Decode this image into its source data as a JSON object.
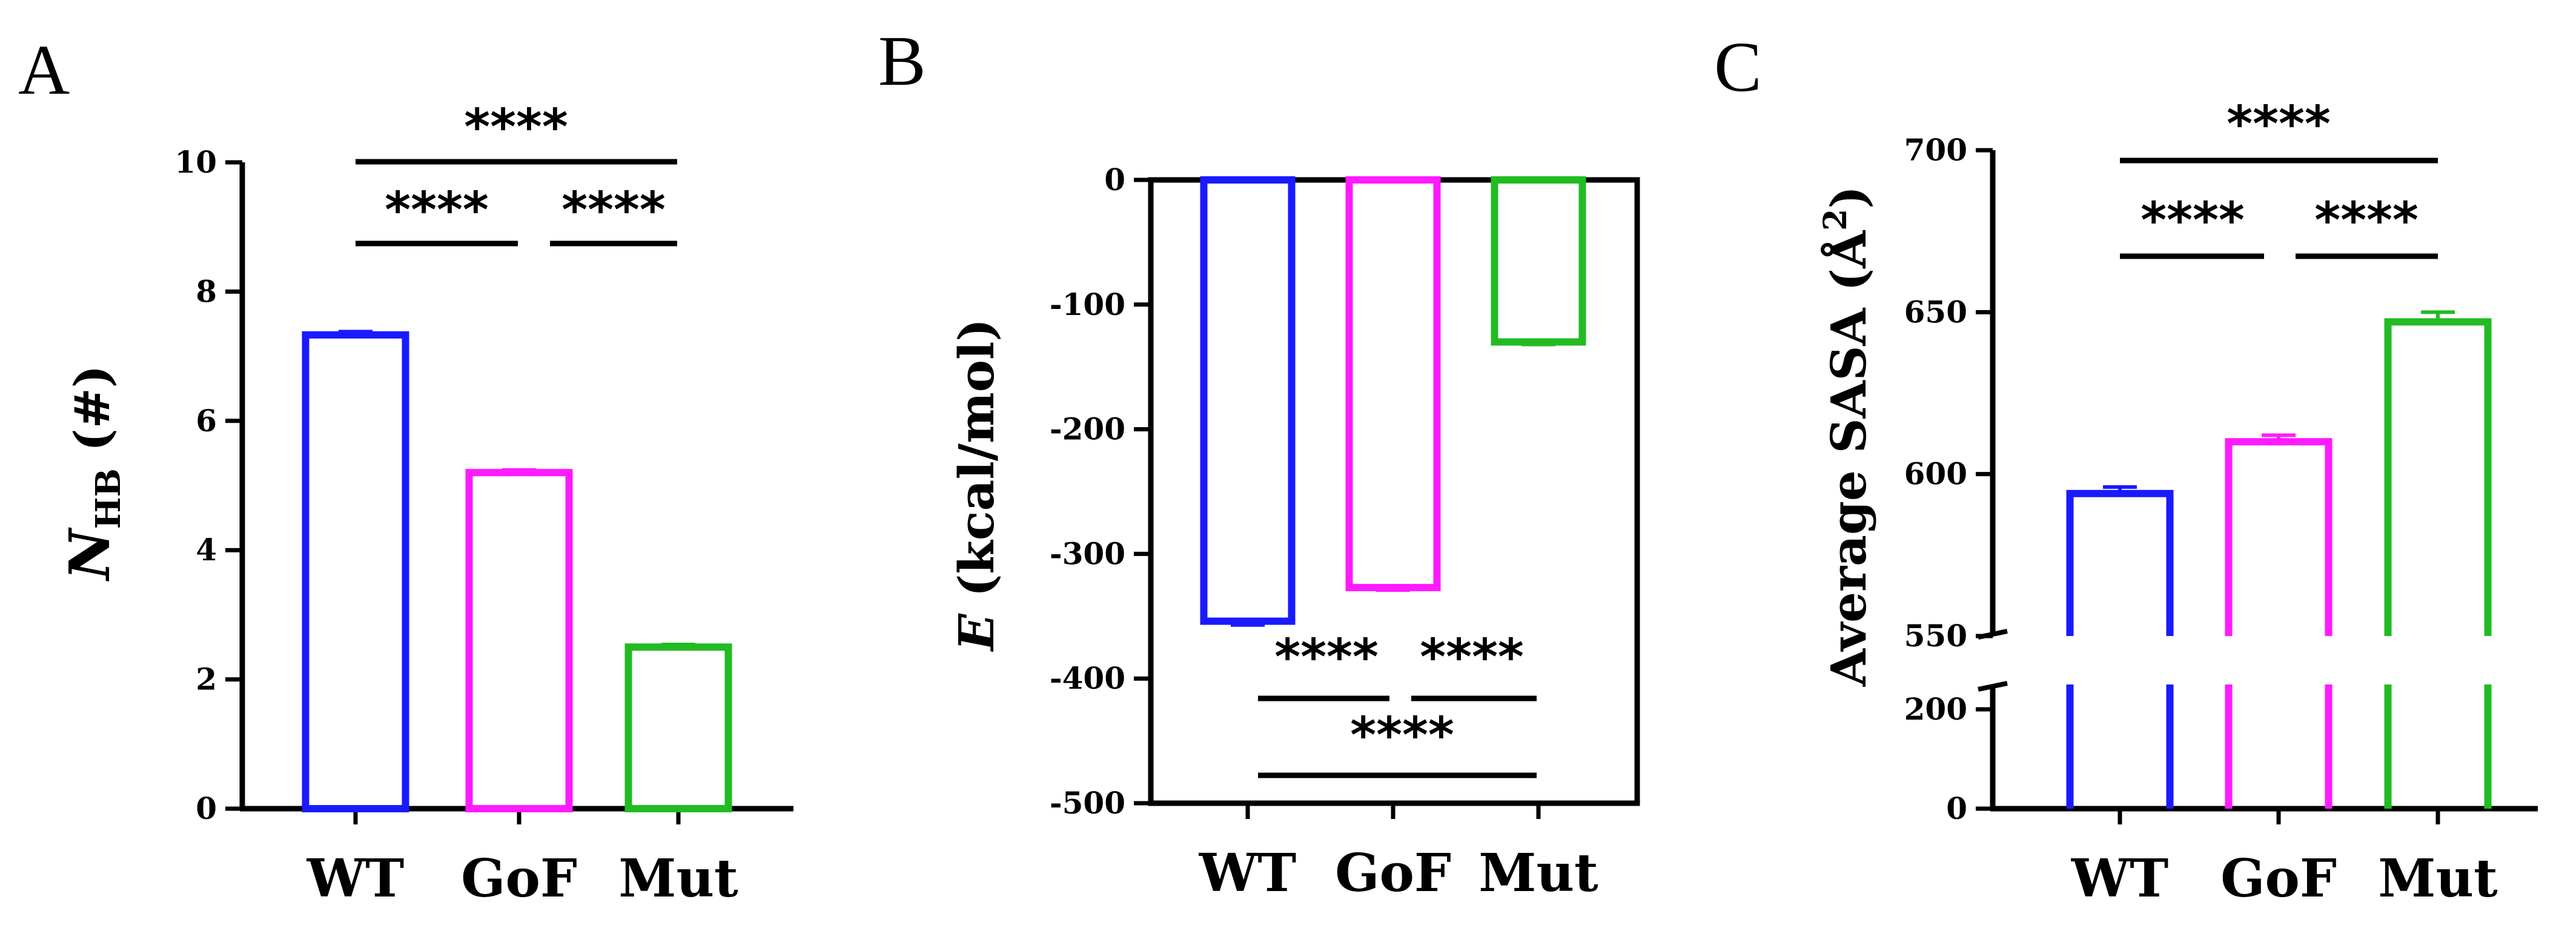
{
  "chart_data": [
    {
      "panel": "A",
      "type": "bar",
      "categories": [
        "WT",
        "GoF",
        "Mut"
      ],
      "colors": [
        "#1a1aff",
        "#ff1aff",
        "#22bb22"
      ],
      "values": [
        7.33,
        5.2,
        2.5
      ],
      "errors": [
        0.05,
        0.04,
        0.04
      ],
      "ylim": [
        0,
        10
      ],
      "yticks": [
        "0",
        "2",
        "4",
        "6",
        "8",
        "10"
      ],
      "ylabel": {
        "symbol": "N",
        "subscript": "HB",
        "rest": " (#)"
      },
      "significance": [
        {
          "from": 0,
          "to": 1,
          "label": "****"
        },
        {
          "from": 1,
          "to": 2,
          "label": "****"
        },
        {
          "from": 0,
          "to": 2,
          "label": "****"
        }
      ]
    },
    {
      "panel": "B",
      "type": "bar",
      "categories": [
        "WT",
        "GoF",
        "Mut"
      ],
      "colors": [
        "#1a1aff",
        "#ff1aff",
        "#22bb22"
      ],
      "values": [
        -354,
        -327,
        -130
      ],
      "errors": [
        3,
        2,
        2
      ],
      "ylim": [
        -500,
        0
      ],
      "yticks": [
        "0",
        "-100",
        "-200",
        "-300",
        "-400",
        "-500"
      ],
      "ylabel": {
        "symbol": "E",
        "rest": " (kcal/mol)"
      },
      "significance": [
        {
          "from": 0,
          "to": 1,
          "label": "****"
        },
        {
          "from": 1,
          "to": 2,
          "label": "****"
        },
        {
          "from": 0,
          "to": 2,
          "label": "****"
        }
      ]
    },
    {
      "panel": "C",
      "type": "bar",
      "categories": [
        "WT",
        "GoF",
        "Mut"
      ],
      "colors": [
        "#1a1aff",
        "#ff1aff",
        "#22bb22"
      ],
      "values": [
        594,
        610,
        647
      ],
      "errors": [
        2,
        2,
        3
      ],
      "axis_break": {
        "lower": [
          0,
          250
        ],
        "upper": [
          550,
          700
        ]
      },
      "yticks_upper": [
        "550",
        "600",
        "650",
        "700"
      ],
      "yticks_lower": [
        "0",
        "200"
      ],
      "ylabel": {
        "text": "Average SASA (",
        "symbol": "Å",
        "sup": "2",
        "close": ")"
      },
      "significance": [
        {
          "from": 0,
          "to": 1,
          "label": "****"
        },
        {
          "from": 1,
          "to": 2,
          "label": "****"
        },
        {
          "from": 0,
          "to": 2,
          "label": "****"
        }
      ]
    }
  ]
}
